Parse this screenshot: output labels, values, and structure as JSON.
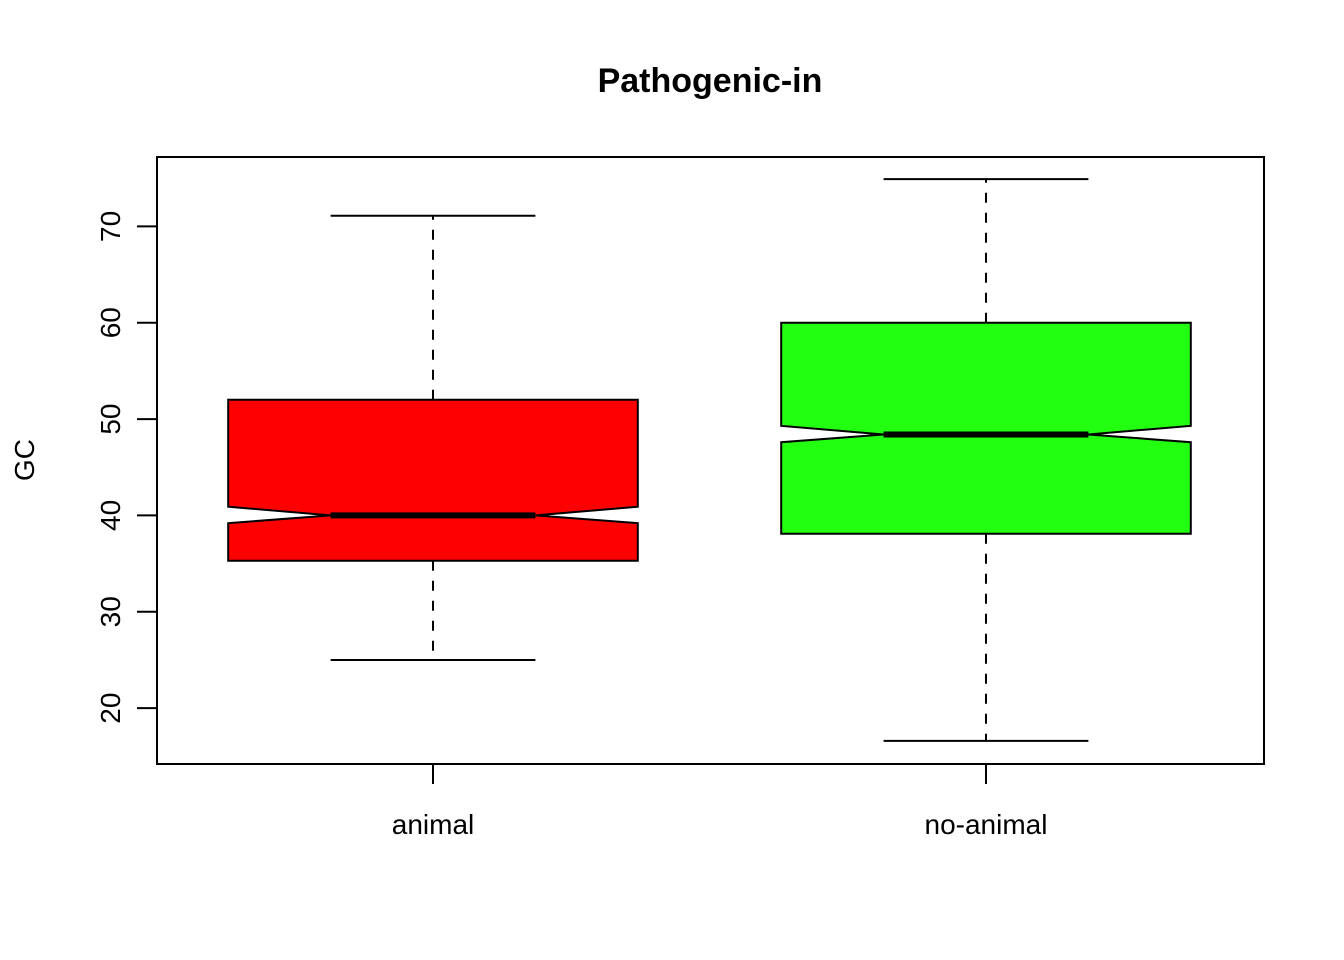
{
  "chart_data": {
    "type": "boxplot",
    "title": "Pathogenic-in",
    "xlabel": "",
    "ylabel": "GC",
    "ylim": [
      14.2,
      77.2
    ],
    "yticks": [
      20,
      30,
      40,
      50,
      60,
      70
    ],
    "notched": true,
    "categories": [
      "animal",
      "no-animal"
    ],
    "series": [
      {
        "category": "animal",
        "color": "#ff0000",
        "whisker_low": 25,
        "q1": 35.3,
        "notch_low": 39.2,
        "median": 40,
        "notch_high": 40.9,
        "q3": 52,
        "whisker_high": 71.1
      },
      {
        "category": "no-animal",
        "color": "#22ff11",
        "whisker_low": 16.6,
        "q1": 38.1,
        "notch_low": 47.6,
        "median": 48.4,
        "notch_high": 49.3,
        "q3": 60,
        "whisker_high": 74.9
      }
    ]
  }
}
